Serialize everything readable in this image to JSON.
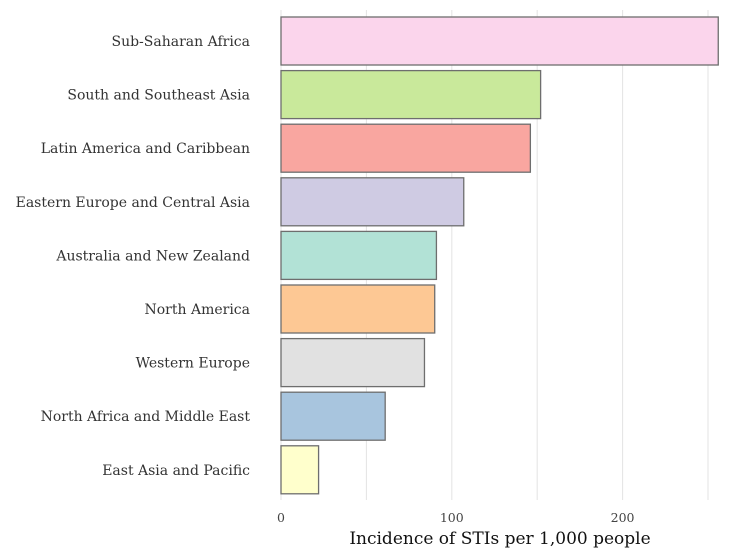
{
  "chart_data": {
    "type": "bar",
    "orientation": "horizontal",
    "title": "",
    "xlabel": "Incidence of STIs per 1,000 people",
    "ylabel": "",
    "xlim": [
      0,
      250
    ],
    "x_ticks": [
      0,
      100,
      200
    ],
    "grid": true,
    "legend": "none",
    "categories": [
      "Sub-Saharan Africa",
      "South and Southeast Asia",
      "Latin America and Caribbean",
      "Eastern Europe and Central Asia",
      "Australia and New Zealand",
      "North America",
      "Western Europe",
      "North Africa and Middle East",
      "East Asia and Pacific"
    ],
    "values": [
      256,
      152,
      146,
      107,
      91,
      90,
      84,
      61,
      22
    ],
    "colors": [
      "#fbd5ec",
      "#c9e99b",
      "#f9a6a0",
      "#cfcbe3",
      "#b2e2d6",
      "#fdc894",
      "#e1e1e1",
      "#a8c5de",
      "#ffffcc"
    ]
  }
}
